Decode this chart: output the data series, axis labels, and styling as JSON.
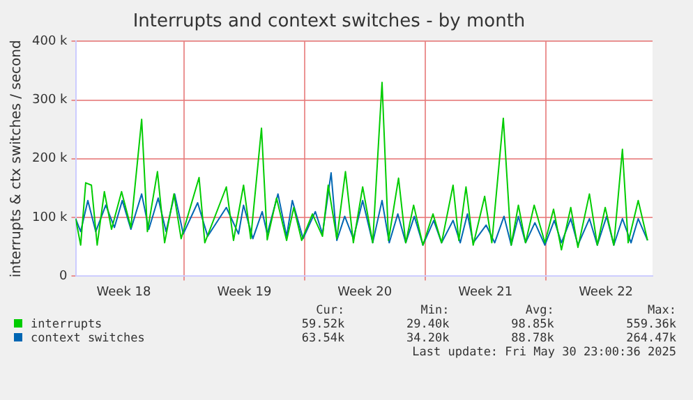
{
  "chart_data": {
    "type": "line",
    "title": "Interrupts and context switches - by month",
    "ylabel": "interrupts & ctx switches / second",
    "xlim": [
      "2025-04-27T17:00",
      "2025-05-31T05:00"
    ],
    "xticks": [
      {
        "value": "2025-04-30T12:00",
        "label": "Week 18"
      },
      {
        "value": "2025-05-04T00:00",
        "label": null
      },
      {
        "value": "2025-05-07T12:00",
        "label": "Week 19"
      },
      {
        "value": "2025-05-11T00:00",
        "label": null
      },
      {
        "value": "2025-05-14T12:00",
        "label": "Week 20"
      },
      {
        "value": "2025-05-18T00:00",
        "label": null
      },
      {
        "value": "2025-05-21T12:00",
        "label": "Week 21"
      },
      {
        "value": "2025-05-25T00:00",
        "label": null
      },
      {
        "value": "2025-05-28T12:00",
        "label": "Week 22"
      }
    ],
    "ylim": [
      0,
      400000
    ],
    "yticks": [
      {
        "value": 0,
        "label": "0"
      },
      {
        "value": 100000,
        "label": "100 k"
      },
      {
        "value": 200000,
        "label": "200 k"
      },
      {
        "value": 300000,
        "label": "300 k"
      },
      {
        "value": 400000,
        "label": "400 k"
      }
    ],
    "grid": true,
    "legend": "bottom",
    "marker": "none",
    "line_style": "solid",
    "series": [
      {
        "name": "interrupts",
        "color": "#00cc00",
        "x": [
          "2025-04-27T17:00",
          "2025-04-28T00:00",
          "2025-04-28T07:00",
          "2025-04-28T15:00",
          "2025-04-28T23:00",
          "2025-04-29T09:00",
          "2025-04-29T19:00",
          "2025-04-30T09:00",
          "2025-04-30T22:00",
          "2025-05-01T13:00",
          "2025-05-01T21:00",
          "2025-05-02T11:00",
          "2025-05-02T21:00",
          "2025-05-03T10:00",
          "2025-05-03T20:00",
          "2025-05-04T21:00",
          "2025-05-05T05:00",
          "2025-05-06T11:00",
          "2025-05-06T21:00",
          "2025-05-07T11:00",
          "2025-05-07T21:00",
          "2025-05-08T12:00",
          "2025-05-08T20:00",
          "2025-05-09T09:00",
          "2025-05-09T23:00",
          "2025-05-10T09:00",
          "2025-05-10T20:00",
          "2025-05-11T11:00",
          "2025-05-12T01:00",
          "2025-05-12T09:00",
          "2025-05-12T21:00",
          "2025-05-13T09:00",
          "2025-05-13T20:00",
          "2025-05-14T09:00",
          "2025-05-14T23:00",
          "2025-05-15T12:00",
          "2025-05-15T21:00",
          "2025-05-16T11:00",
          "2025-05-16T21:00",
          "2025-05-17T08:00",
          "2025-05-17T21:00",
          "2025-05-18T11:00",
          "2025-05-18T23:00",
          "2025-05-19T15:00",
          "2025-05-19T23:00",
          "2025-05-20T09:00",
          "2025-05-20T19:00",
          "2025-05-21T11:00",
          "2025-05-21T21:00",
          "2025-05-22T13:00",
          "2025-05-23T00:00",
          "2025-05-23T10:00",
          "2025-05-23T20:00",
          "2025-05-24T08:00",
          "2025-05-24T23:00",
          "2025-05-25T11:00",
          "2025-05-25T22:00",
          "2025-05-26T11:00",
          "2025-05-26T21:00",
          "2025-05-27T13:00",
          "2025-05-28T00:00",
          "2025-05-28T11:00",
          "2025-05-28T23:00",
          "2025-05-29T11:00",
          "2025-05-29T19:00",
          "2025-05-30T09:00",
          "2025-05-30T22:00"
        ],
        "values": [
          98000,
          53000,
          159000,
          155000,
          53000,
          144000,
          80000,
          144000,
          83000,
          267000,
          76000,
          178000,
          57000,
          140000,
          64000,
          168000,
          57000,
          152000,
          61000,
          155000,
          64000,
          252000,
          62000,
          133000,
          61000,
          117000,
          61000,
          106000,
          68000,
          155000,
          64000,
          178000,
          57000,
          152000,
          57000,
          330000,
          61000,
          167000,
          57000,
          121000,
          53000,
          106000,
          57000,
          155000,
          61000,
          152000,
          53000,
          136000,
          57000,
          269000,
          53000,
          121000,
          57000,
          121000,
          57000,
          114000,
          45000,
          117000,
          49000,
          140000,
          53000,
          117000,
          53000,
          216000,
          57000,
          129000,
          61000
        ]
      },
      {
        "name": "context switches",
        "color": "#0066b3",
        "x": [
          "2025-04-27T17:00",
          "2025-04-28T00:00",
          "2025-04-28T10:00",
          "2025-04-28T21:00",
          "2025-04-29T11:00",
          "2025-04-29T23:00",
          "2025-04-30T10:00",
          "2025-04-30T22:00",
          "2025-05-01T13:00",
          "2025-05-01T23:00",
          "2025-05-02T12:00",
          "2025-05-02T23:00",
          "2025-05-03T11:00",
          "2025-05-03T23:00",
          "2025-05-04T19:00",
          "2025-05-05T09:00",
          "2025-05-06T11:00",
          "2025-05-07T04:00",
          "2025-05-07T11:00",
          "2025-05-08T00:00",
          "2025-05-08T13:00",
          "2025-05-08T20:00",
          "2025-05-09T11:00",
          "2025-05-09T23:00",
          "2025-05-10T07:00",
          "2025-05-10T22:00",
          "2025-05-11T15:00",
          "2025-05-12T01:00",
          "2025-05-12T13:00",
          "2025-05-12T21:00",
          "2025-05-13T08:00",
          "2025-05-13T20:00",
          "2025-05-14T09:00",
          "2025-05-14T23:00",
          "2025-05-15T12:00",
          "2025-05-15T22:00",
          "2025-05-16T10:00",
          "2025-05-16T21:00",
          "2025-05-17T09:00",
          "2025-05-17T21:00",
          "2025-05-18T12:00",
          "2025-05-18T23:00",
          "2025-05-19T15:00",
          "2025-05-20T01:00",
          "2025-05-20T11:00",
          "2025-05-20T19:00",
          "2025-05-21T13:00",
          "2025-05-22T01:00",
          "2025-05-22T14:00",
          "2025-05-23T00:00",
          "2025-05-23T10:00",
          "2025-05-23T20:00",
          "2025-05-24T09:00",
          "2025-05-24T23:00",
          "2025-05-25T12:00",
          "2025-05-25T22:00",
          "2025-05-26T11:00",
          "2025-05-26T21:00",
          "2025-05-27T13:00",
          "2025-05-28T00:00",
          "2025-05-28T13:00",
          "2025-05-28T23:00",
          "2025-05-29T11:00",
          "2025-05-29T23:00",
          "2025-05-30T09:00",
          "2025-05-30T22:00"
        ],
        "values": [
          98000,
          76000,
          129000,
          76000,
          121000,
          83000,
          129000,
          80000,
          140000,
          80000,
          133000,
          76000,
          140000,
          72000,
          125000,
          68000,
          117000,
          72000,
          121000,
          64000,
          110000,
          72000,
          140000,
          68000,
          129000,
          64000,
          110000,
          72000,
          176000,
          61000,
          102000,
          64000,
          129000,
          57000,
          129000,
          57000,
          106000,
          57000,
          102000,
          53000,
          95000,
          57000,
          95000,
          57000,
          106000,
          57000,
          87000,
          57000,
          102000,
          53000,
          102000,
          57000,
          91000,
          53000,
          95000,
          57000,
          98000,
          53000,
          98000,
          53000,
          102000,
          53000,
          98000,
          57000,
          98000,
          61000
        ]
      }
    ],
    "annotations": [
      "Cur:",
      "Min:",
      "Avg:",
      "Max:",
      "59.52k",
      "29.40k",
      "98.85k",
      "559.36k",
      "63.54k",
      "34.20k",
      "88.78k",
      "264.47k",
      "Last update: Fri May 30 23:00:36 2025"
    ]
  }
}
